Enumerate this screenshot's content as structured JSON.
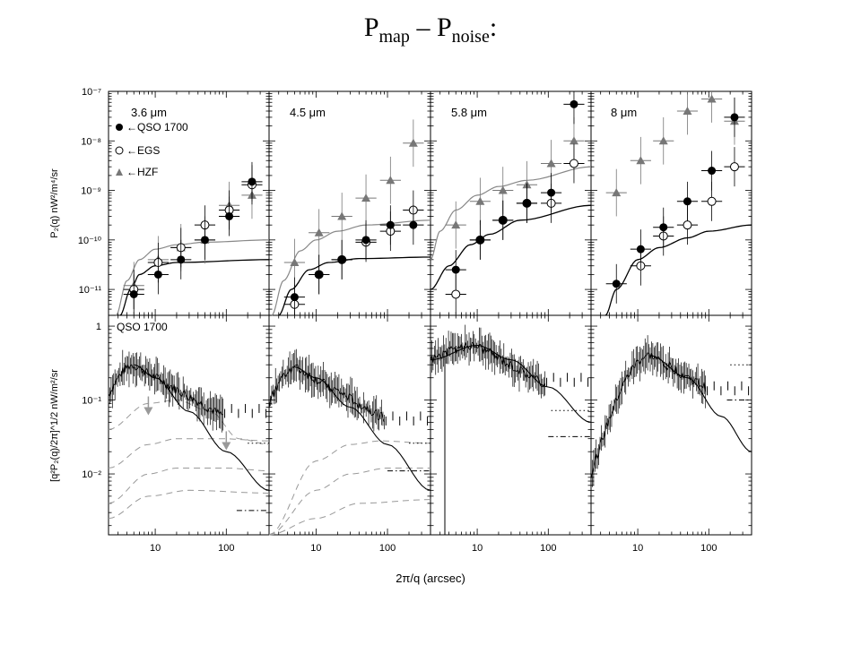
{
  "slide": {
    "title_main": "P",
    "title_sub1": "map",
    "title_mid": " – P",
    "title_sub2": "noise",
    "title_end": ":"
  },
  "colors": {
    "qso": "#000000",
    "egs": "#000000",
    "hzf": "#777777",
    "model": "#000000",
    "model_gray": "#888888",
    "dashed": "#999999"
  },
  "chart_data": {
    "type": "scatter",
    "xlabel": "2π/q (arcsec)",
    "xscale": "log",
    "xlim": [
      2.2,
      400
    ],
    "xticks": [
      10,
      100
    ],
    "columns": [
      {
        "label": "3.6 μm",
        "xlim": [
          2.2,
          400
        ]
      },
      {
        "label": "4.5 μm",
        "xlim": [
          2.2,
          400
        ]
      },
      {
        "label": "5.8 μm",
        "xlim": [
          2.2,
          400
        ]
      },
      {
        "label": "8 μm",
        "xlim": [
          2.2,
          400
        ]
      }
    ],
    "top_row": {
      "ylabel": "P₂(q)   nW²/m⁴/sr",
      "yscale": "log",
      "ylim": [
        3e-12,
        1e-07
      ],
      "ytick_labels": [
        "10⁻⁷",
        "10⁻⁸",
        "10⁻⁹",
        "10⁻¹⁰",
        "10⁻¹¹"
      ],
      "legend": [
        "←QSO 1700",
        "←EGS",
        "←HZF"
      ],
      "panels": [
        {
          "qso": [
            [
              5,
              8e-12
            ],
            [
              11,
              2e-11
            ],
            [
              23,
              4e-11
            ],
            [
              50,
              1e-10
            ],
            [
              110,
              3e-10
            ],
            [
              230,
              1.5e-09
            ]
          ],
          "egs": [
            [
              5,
              1e-11
            ],
            [
              11,
              3.5e-11
            ],
            [
              23,
              7e-11
            ],
            [
              50,
              2e-10
            ],
            [
              110,
              4e-10
            ],
            [
              230,
              1.3e-09
            ]
          ],
          "hzf": [
            [
              5,
              1.2e-11
            ],
            [
              11,
              4e-11
            ],
            [
              23,
              7e-11
            ],
            [
              50,
              1e-10
            ],
            [
              110,
              5e-10
            ],
            [
              230,
              8e-10
            ]
          ],
          "model_gray": [
            [
              2.8,
              3e-12
            ],
            [
              4,
              1.5e-11
            ],
            [
              6,
              4e-11
            ],
            [
              10,
              6.5e-11
            ],
            [
              20,
              8e-11
            ],
            [
              50,
              9e-11
            ],
            [
              400,
              1e-10
            ]
          ],
          "model_black": [
            [
              3.2,
              3e-12
            ],
            [
              4.5,
              1e-11
            ],
            [
              6,
              2e-11
            ],
            [
              10,
              3e-11
            ],
            [
              20,
              3.5e-11
            ],
            [
              400,
              4e-11
            ]
          ]
        },
        {
          "qso": [
            [
              5,
              7e-12
            ],
            [
              11,
              2e-11
            ],
            [
              23,
              4e-11
            ],
            [
              50,
              1e-10
            ],
            [
              110,
              2e-10
            ],
            [
              230,
              2e-10
            ]
          ],
          "egs": [
            [
              5,
              5e-12
            ],
            [
              11,
              2e-11
            ],
            [
              23,
              4e-11
            ],
            [
              50,
              9e-11
            ],
            [
              110,
              1.5e-10
            ],
            [
              230,
              4e-10
            ]
          ],
          "hzf": [
            [
              5,
              3.5e-11
            ],
            [
              11,
              1.4e-10
            ],
            [
              23,
              3e-10
            ],
            [
              50,
              7e-10
            ],
            [
              110,
              1.6e-09
            ],
            [
              230,
              9e-09
            ]
          ],
          "model_gray": [
            [
              2.4,
              3e-12
            ],
            [
              3.5,
              1.5e-11
            ],
            [
              6,
              6e-11
            ],
            [
              10,
              1e-10
            ],
            [
              20,
              1.5e-10
            ],
            [
              50,
              2e-10
            ],
            [
              400,
              2.5e-10
            ]
          ],
          "model_black": [
            [
              3,
              3e-12
            ],
            [
              4.5,
              1e-11
            ],
            [
              8,
              2.5e-11
            ],
            [
              15,
              3.5e-11
            ],
            [
              40,
              4.2e-11
            ],
            [
              400,
              4.5e-11
            ]
          ]
        },
        {
          "qso": [
            [
              5,
              2.5e-11
            ],
            [
              11,
              1e-10
            ],
            [
              23,
              2.5e-10
            ],
            [
              50,
              5.5e-10
            ],
            [
              110,
              9e-10
            ],
            [
              230,
              5.5e-08
            ]
          ],
          "egs": [
            [
              5,
              8e-12
            ],
            [
              11,
              1e-10
            ],
            [
              23,
              2.5e-10
            ],
            [
              50,
              5.5e-10
            ],
            [
              110,
              5.5e-10
            ],
            [
              230,
              3.5e-09
            ]
          ],
          "hzf": [
            [
              5,
              2e-10
            ],
            [
              11,
              6e-10
            ],
            [
              23,
              1e-09
            ],
            [
              50,
              1.3e-09
            ],
            [
              110,
              3.5e-09
            ],
            [
              230,
              1e-08
            ]
          ],
          "model_gray": [
            [
              2.2,
              4e-11
            ],
            [
              3,
              1.5e-10
            ],
            [
              5,
              4e-10
            ],
            [
              10,
              8e-10
            ],
            [
              20,
              1.2e-09
            ],
            [
              50,
              1.6e-09
            ],
            [
              400,
              3e-09
            ]
          ],
          "model_black": [
            [
              2.2,
              1e-11
            ],
            [
              4,
              3e-11
            ],
            [
              8,
              8e-11
            ],
            [
              15,
              1.3e-10
            ],
            [
              40,
              2.5e-10
            ],
            [
              400,
              5e-10
            ]
          ]
        },
        {
          "qso": [
            [
              5,
              1.3e-11
            ],
            [
              11,
              6.5e-11
            ],
            [
              23,
              1.8e-10
            ],
            [
              50,
              6e-10
            ],
            [
              110,
              2.5e-09
            ],
            [
              230,
              3e-08
            ]
          ],
          "egs": [
            [
              11,
              3e-11
            ],
            [
              23,
              1.2e-10
            ],
            [
              50,
              2e-10
            ],
            [
              110,
              6e-10
            ],
            [
              230,
              3e-09
            ]
          ],
          "hzf": [
            [
              5,
              9e-10
            ],
            [
              11,
              4e-09
            ],
            [
              23,
              1e-08
            ],
            [
              50,
              4e-08
            ],
            [
              110,
              7e-08
            ],
            [
              230,
              2.5e-08
            ]
          ],
          "model_black": [
            [
              3.5,
              3e-12
            ],
            [
              5,
              1e-11
            ],
            [
              10,
              4e-11
            ],
            [
              20,
              7e-11
            ],
            [
              50,
              1.1e-10
            ],
            [
              100,
              1.5e-10
            ],
            [
              400,
              2e-10
            ]
          ]
        }
      ]
    },
    "bottom_row": {
      "ylabel": "[q²P₂(q)/2π]^1/2   nW/m²/sr",
      "yscale": "log",
      "ylim": [
        0.0015,
        1.4
      ],
      "ytick_labels": [
        "1",
        "10⁻¹",
        "10⁻²"
      ],
      "annotation": "QSO 1700",
      "panels": [
        {
          "hump": {
            "x0": 2.2,
            "peak_x": 5,
            "peak_y": 0.3,
            "start_y": 0.12
          },
          "model": [
            [
              5,
              0.3
            ],
            [
              10,
              0.2
            ],
            [
              30,
              0.07
            ],
            [
              100,
              0.02
            ],
            [
              400,
              0.006
            ]
          ],
          "dashed": [
            [
              [
                2.2,
                0.04
              ],
              [
                8,
                0.09
              ],
              [
                20,
                0.1
              ],
              [
                60,
                0.07
              ],
              [
                150,
                0.03
              ],
              [
                400,
                0.025
              ]
            ],
            [
              [
                2.2,
                0.012
              ],
              [
                8,
                0.025
              ],
              [
                20,
                0.03
              ],
              [
                80,
                0.03
              ],
              [
                400,
                0.028
              ]
            ],
            [
              [
                2.2,
                0.004
              ],
              [
                8,
                0.01
              ],
              [
                20,
                0.012
              ],
              [
                100,
                0.012
              ],
              [
                400,
                0.011
              ]
            ],
            [
              [
                2.2,
                0.0025
              ],
              [
                8,
                0.005
              ],
              [
                30,
                0.006
              ],
              [
                400,
                0.0055
              ]
            ]
          ],
          "arrows": [
            [
              8,
              0.08
            ],
            [
              100,
              0.027
            ]
          ],
          "dotted": [
            [
              200,
              0.026
            ],
            [
              400,
              0.026
            ]
          ],
          "dashdot": [
            [
              140,
              0.0032
            ],
            [
              400,
              0.0032
            ]
          ]
        },
        {
          "hump": {
            "x0": 2.2,
            "peak_x": 5,
            "peak_y": 0.28,
            "start_y": 0.09
          },
          "model": [
            [
              5,
              0.28
            ],
            [
              10,
              0.2
            ],
            [
              30,
              0.08
            ],
            [
              100,
              0.025
            ],
            [
              400,
              0.006
            ]
          ],
          "dashed": [
            [
              [
                2.2,
                0.0015
              ],
              [
                10,
                0.015
              ],
              [
                30,
                0.025
              ],
              [
                80,
                0.028
              ],
              [
                400,
                0.026
              ]
            ],
            [
              [
                2.2,
                0.0015
              ],
              [
                10,
                0.006
              ],
              [
                30,
                0.01
              ],
              [
                100,
                0.012
              ],
              [
                400,
                0.012
              ]
            ],
            [
              [
                2.2,
                0.0015
              ],
              [
                10,
                0.0025
              ],
              [
                40,
                0.004
              ],
              [
                400,
                0.0045
              ]
            ]
          ],
          "dotted": [
            [
              200,
              0.026
            ],
            [
              400,
              0.026
            ]
          ],
          "dashdot": [
            [
              100,
              0.011
            ],
            [
              400,
              0.011
            ]
          ]
        },
        {
          "hump": {
            "x0": 2.2,
            "peak_x": 10,
            "peak_y": 0.55,
            "start_y": 0.35
          },
          "model": [
            [
              2.2,
              0.35
            ],
            [
              10,
              0.55
            ],
            [
              30,
              0.35
            ],
            [
              100,
              0.15
            ],
            [
              400,
              0.05
            ]
          ],
          "dotted": [
            [
              110,
              0.072
            ],
            [
              400,
              0.072
            ]
          ],
          "dashdot": [
            [
              100,
              0.032
            ],
            [
              400,
              0.032
            ]
          ]
        },
        {
          "hump": {
            "x0": 2.2,
            "peak_x": 15,
            "peak_y": 0.4,
            "start_y": 0.01
          },
          "model": [
            [
              15,
              0.4
            ],
            [
              50,
              0.2
            ],
            [
              150,
              0.06
            ],
            [
              400,
              0.02
            ]
          ],
          "dotted": [
            [
              200,
              0.3
            ],
            [
              400,
              0.3
            ]
          ],
          "dashdot": [
            [
              180,
              0.1
            ],
            [
              400,
              0.1
            ]
          ]
        }
      ]
    }
  }
}
